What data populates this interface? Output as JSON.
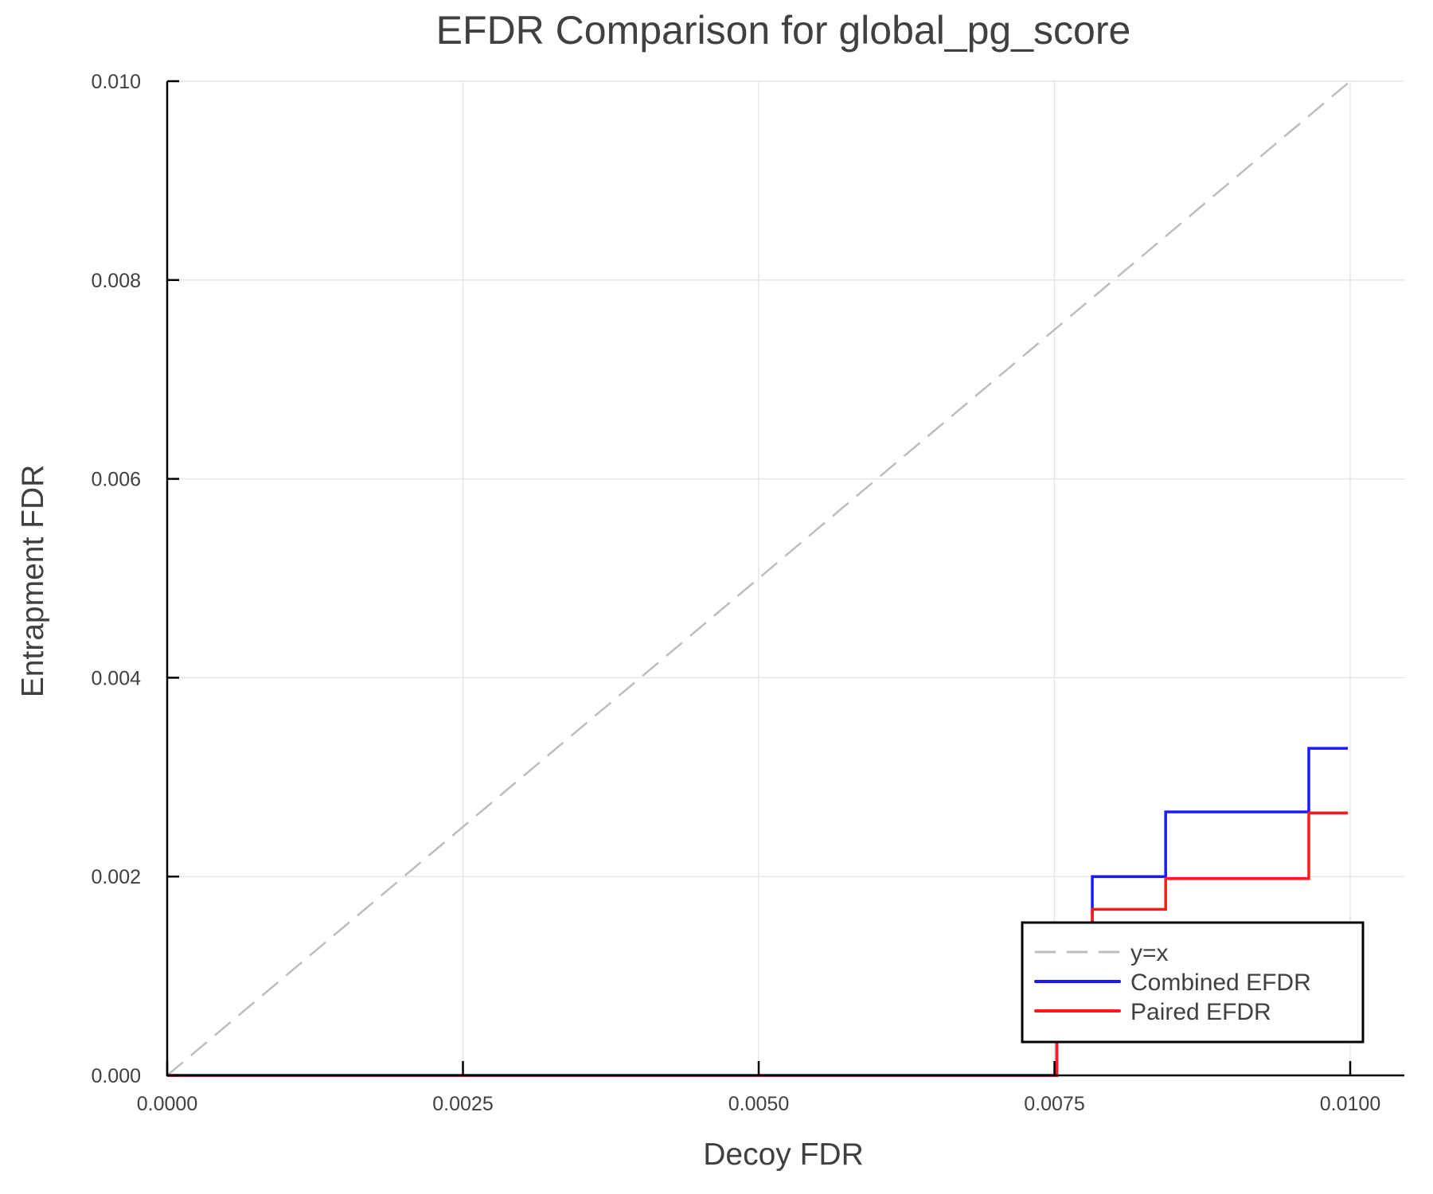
{
  "chart_data": {
    "type": "line",
    "title": "EFDR Comparison for global_pg_score",
    "xlabel": "Decoy FDR",
    "ylabel": "Entrapment FDR",
    "xlim": [
      0,
      0.0105
    ],
    "ylim": [
      0,
      0.01
    ],
    "xticks": [
      "0.0000",
      "0.0025",
      "0.0050",
      "0.0075",
      "0.0100"
    ],
    "xtick_values": [
      0,
      0.0025,
      0.005,
      0.0075,
      0.01
    ],
    "yticks": [
      "0.000",
      "0.002",
      "0.004",
      "0.006",
      "0.008",
      "0.010"
    ],
    "ytick_values": [
      0,
      0.002,
      0.004,
      0.006,
      0.008,
      0.01
    ],
    "grid": true,
    "legend_position": "bottom-right",
    "series": [
      {
        "name": "y=x",
        "style": "dashed",
        "color": "#bdbdbd",
        "step": false,
        "x": [
          0,
          0.01
        ],
        "y": [
          0,
          0.01
        ]
      },
      {
        "name": "Combined EFDR",
        "style": "solid",
        "color": "#1a1aff",
        "step": true,
        "x": [
          0,
          0.00752,
          0.00782,
          0.00844,
          0.00965,
          0.00998
        ],
        "y": [
          0,
          0.0013,
          0.002,
          0.00265,
          0.00329,
          0.00329
        ]
      },
      {
        "name": "Paired EFDR",
        "style": "solid",
        "color": "#ff1a1a",
        "step": true,
        "x": [
          0,
          0.00752,
          0.00782,
          0.00844,
          0.00965,
          0.00998
        ],
        "y": [
          0,
          0.0013,
          0.00167,
          0.00198,
          0.00264,
          0.00264
        ]
      }
    ]
  }
}
